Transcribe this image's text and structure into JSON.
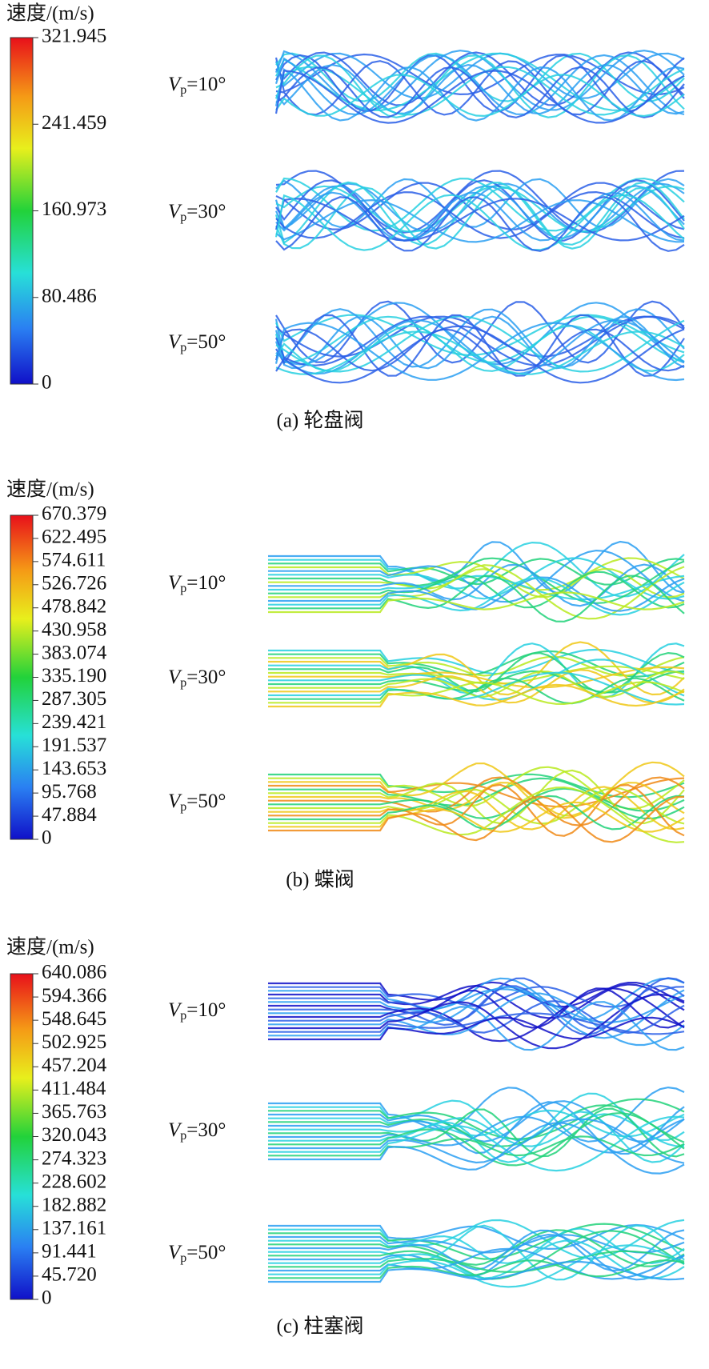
{
  "panels": [
    {
      "colorbar_title": "速度/(m/s)",
      "ticks": [
        "321.945",
        "241.459",
        "160.973",
        "80.486",
        "0"
      ],
      "rows": [
        {
          "symbol": "V",
          "subscript": "p",
          "value": "=10°"
        },
        {
          "symbol": "V",
          "subscript": "p",
          "value": "=30°"
        },
        {
          "symbol": "V",
          "subscript": "p",
          "value": "=50°"
        }
      ],
      "caption": "(a) 轮盘阀"
    },
    {
      "colorbar_title": "速度/(m/s)",
      "ticks": [
        "670.379",
        "622.495",
        "574.611",
        "526.726",
        "478.842",
        "430.958",
        "383.074",
        "335.190",
        "287.305",
        "239.421",
        "191.537",
        "143.653",
        "95.768",
        "47.884",
        "0"
      ],
      "rows": [
        {
          "symbol": "V",
          "subscript": "p",
          "value": "=10°"
        },
        {
          "symbol": "V",
          "subscript": "p",
          "value": "=30°"
        },
        {
          "symbol": "V",
          "subscript": "p",
          "value": "=50°"
        }
      ],
      "caption": "(b) 蝶阀"
    },
    {
      "colorbar_title": "速度/(m/s)",
      "ticks": [
        "640.086",
        "594.366",
        "548.645",
        "502.925",
        "457.204",
        "411.484",
        "365.763",
        "320.043",
        "274.323",
        "228.602",
        "182.882",
        "137.161",
        "91.441",
        "45.720",
        "0"
      ],
      "rows": [
        {
          "symbol": "V",
          "subscript": "p",
          "value": "=10°"
        },
        {
          "symbol": "V",
          "subscript": "p",
          "value": "=30°"
        },
        {
          "symbol": "V",
          "subscript": "p",
          "value": "=50°"
        }
      ],
      "caption": "(c) 柱塞阀"
    }
  ]
}
